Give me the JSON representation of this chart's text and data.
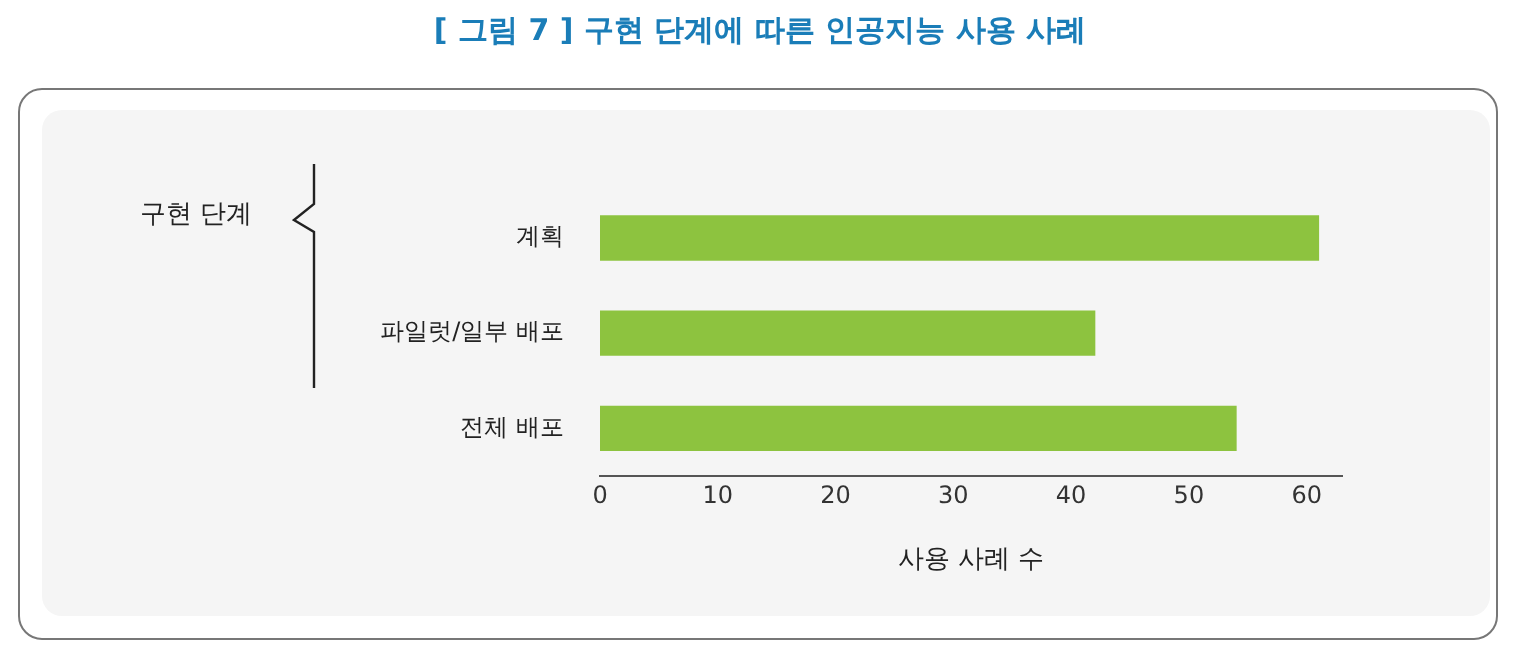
{
  "chart_data": {
    "type": "bar",
    "orientation": "horizontal",
    "title": "[ 그림 7 ] 구현 단계에 따른 인공지능 사용 사례",
    "ylabel": "구현 단계",
    "xlabel": "사용 사례 수",
    "categories": [
      "계획",
      "파일럿/일부 배포",
      "전체 배포"
    ],
    "values": [
      61,
      42,
      54
    ],
    "color": "#8dc33f",
    "xlim": [
      0,
      63
    ],
    "xticks": [
      0,
      10,
      20,
      30,
      40,
      50,
      60
    ],
    "grid": false,
    "legend": false
  }
}
